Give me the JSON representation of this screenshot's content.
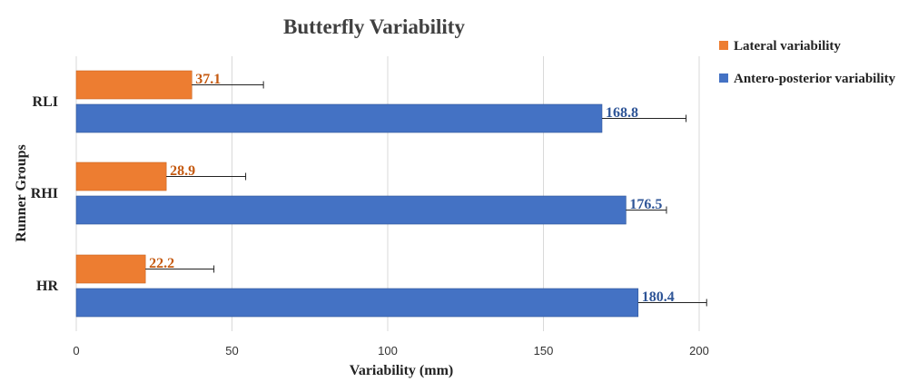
{
  "chart_data": {
    "type": "bar",
    "orientation": "horizontal",
    "title": "Butterfly Variability",
    "xlabel": "Variability  (mm)",
    "ylabel": "Runner Groups",
    "xlim": [
      0,
      200
    ],
    "xticks": [
      0,
      50,
      100,
      150,
      200
    ],
    "xtick_labels": [
      "0",
      "50",
      "100",
      "150",
      "200"
    ],
    "grid": true,
    "legend_position": "top-right",
    "categories": [
      "RLI",
      "RHI",
      "HR"
    ],
    "series": [
      {
        "name": "Lateral variability",
        "color": "#ED7D31",
        "label_color": "#C55A11",
        "values": [
          37.1,
          28.9,
          22.2
        ],
        "value_labels": [
          "37.1",
          "28.9",
          "22.2"
        ],
        "error": [
          23,
          25.5,
          22
        ]
      },
      {
        "name": "Antero-posterior variability",
        "color": "#4472C4",
        "label_color": "#2F5597",
        "values": [
          168.8,
          176.5,
          180.4
        ],
        "value_labels": [
          "168.8",
          "176.5",
          "180.4"
        ],
        "error": [
          27,
          13,
          22
        ]
      }
    ]
  }
}
